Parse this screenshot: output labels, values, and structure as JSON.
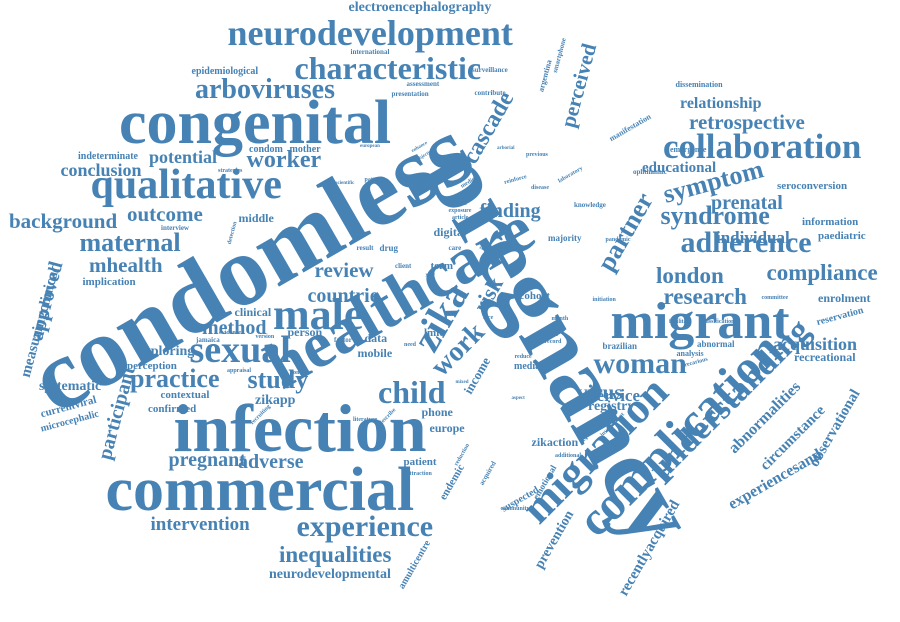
{
  "cloud": {
    "color": "#4682b4",
    "words": [
      {
        "text": "condomless",
        "weight": 1.0,
        "angle": -30
      },
      {
        "text": "pregnancy",
        "weight": 0.98,
        "angle": 60
      },
      {
        "text": "healthcare",
        "weight": 0.72,
        "angle": -30
      },
      {
        "text": "congenital",
        "weight": 0.72,
        "angle": 0
      },
      {
        "text": "infection",
        "weight": 0.72,
        "angle": 0
      },
      {
        "text": "commercial",
        "weight": 0.72,
        "angle": 0
      },
      {
        "text": "migrant",
        "weight": 0.55,
        "angle": 0
      },
      {
        "text": "complication",
        "weight": 0.5,
        "angle": -45
      },
      {
        "text": "migration",
        "weight": 0.45,
        "angle": -45
      },
      {
        "text": "qualitative",
        "weight": 0.45,
        "angle": 0
      },
      {
        "text": "neurodevelopment",
        "weight": 0.4,
        "angle": 0
      },
      {
        "text": "collaboration",
        "weight": 0.4,
        "angle": 0
      },
      {
        "text": "understanding",
        "weight": 0.38,
        "angle": -45
      },
      {
        "text": "characteristic",
        "weight": 0.38,
        "angle": 0
      },
      {
        "text": "male",
        "weight": 0.45,
        "angle": 0
      },
      {
        "text": "sexual",
        "weight": 0.4,
        "angle": 0
      },
      {
        "text": "zika",
        "weight": 0.45,
        "angle": -60
      },
      {
        "text": "experience",
        "weight": 0.33,
        "angle": 0
      },
      {
        "text": "woman",
        "weight": 0.33,
        "angle": 0
      },
      {
        "text": "child",
        "weight": 0.33,
        "angle": 0
      },
      {
        "text": "adherence",
        "weight": 0.33,
        "angle": 0
      },
      {
        "text": "arboviruses",
        "weight": 0.3,
        "angle": 0
      },
      {
        "text": "practice",
        "weight": 0.28,
        "angle": 0
      },
      {
        "text": "study",
        "weight": 0.28,
        "angle": 0
      },
      {
        "text": "symptom",
        "weight": 0.28,
        "angle": -15
      },
      {
        "text": "syndrome",
        "weight": 0.28,
        "angle": 0
      },
      {
        "text": "maternal",
        "weight": 0.28,
        "angle": 0
      },
      {
        "text": "partner",
        "weight": 0.28,
        "angle": -60
      },
      {
        "text": "work",
        "weight": 0.28,
        "angle": -45
      },
      {
        "text": "inequalities",
        "weight": 0.25,
        "angle": 0
      },
      {
        "text": "compliance",
        "weight": 0.25,
        "angle": 0
      },
      {
        "text": "research",
        "weight": 0.25,
        "angle": 0
      },
      {
        "text": "london",
        "weight": 0.25,
        "angle": 0
      },
      {
        "text": "worker",
        "weight": 0.24,
        "angle": 0
      },
      {
        "text": "cascade",
        "weight": 0.24,
        "angle": -60
      },
      {
        "text": "retrospective",
        "weight": 0.22,
        "angle": 0
      },
      {
        "text": "mhealth",
        "weight": 0.22,
        "angle": 0
      },
      {
        "text": "outcome",
        "weight": 0.22,
        "angle": 0
      },
      {
        "text": "background",
        "weight": 0.22,
        "angle": 0
      },
      {
        "text": "virus",
        "weight": 0.22,
        "angle": 0
      },
      {
        "text": "review",
        "weight": 0.22,
        "angle": 0
      },
      {
        "text": "perceived",
        "weight": 0.2,
        "angle": -75
      },
      {
        "text": "finding",
        "weight": 0.2,
        "angle": 0
      },
      {
        "text": "prenatal",
        "weight": 0.2,
        "angle": 0
      },
      {
        "text": "method",
        "weight": 0.2,
        "angle": 0
      },
      {
        "text": "adverse",
        "weight": 0.2,
        "angle": 0
      },
      {
        "text": "pregnant",
        "weight": 0.2,
        "angle": 0
      },
      {
        "text": "intervention",
        "weight": 0.2,
        "angle": 0
      },
      {
        "text": "potential",
        "weight": 0.18,
        "angle": 0
      },
      {
        "text": "conclusion",
        "weight": 0.18,
        "angle": 0
      },
      {
        "text": "acquisition",
        "weight": 0.18,
        "angle": 0
      },
      {
        "text": "participant",
        "weight": 0.2,
        "angle": -75
      },
      {
        "text": "approved",
        "weight": 0.2,
        "angle": -75
      },
      {
        "text": "countrie",
        "weight": 0.2,
        "angle": 0
      },
      {
        "text": "individual",
        "weight": 0.18,
        "angle": 0
      },
      {
        "text": "risk",
        "weight": 0.2,
        "angle": -60
      },
      {
        "text": "service",
        "weight": 0.18,
        "angle": 0
      },
      {
        "text": "relationship",
        "weight": 0.16,
        "angle": 0
      },
      {
        "text": "educational",
        "weight": 0.15,
        "angle": 0
      },
      {
        "text": "abnormalities",
        "weight": 0.16,
        "angle": -45
      },
      {
        "text": "circumstance",
        "weight": 0.15,
        "angle": -45
      },
      {
        "text": "observational",
        "weight": 0.15,
        "angle": -60
      },
      {
        "text": "experiencesand",
        "weight": 0.16,
        "angle": -30
      },
      {
        "text": "recentlyacquired",
        "weight": 0.15,
        "angle": -60
      },
      {
        "text": "neurodevelopmental",
        "weight": 0.14,
        "angle": 0
      },
      {
        "text": "electroencephalography",
        "weight": 0.14,
        "angle": 0
      },
      {
        "text": "measuringclinical",
        "weight": 0.15,
        "angle": -75
      },
      {
        "text": "exploring",
        "weight": 0.14,
        "angle": 0
      },
      {
        "text": "systematic",
        "weight": 0.14,
        "angle": 0
      },
      {
        "text": "zikapp",
        "weight": 0.14,
        "angle": 0
      },
      {
        "text": "registry",
        "weight": 0.14,
        "angle": 0
      },
      {
        "text": "zikaction",
        "weight": 0.12,
        "angle": 0
      },
      {
        "text": "currentviral",
        "weight": 0.11,
        "angle": -15
      },
      {
        "text": "prevention",
        "weight": 0.14,
        "angle": -60
      },
      {
        "text": "recreational",
        "weight": 0.12,
        "angle": 0
      },
      {
        "text": "enrolment",
        "weight": 0.12,
        "angle": 0
      },
      {
        "text": "seroconversion",
        "weight": 0.11,
        "angle": 0
      },
      {
        "text": "information",
        "weight": 0.11,
        "angle": 0
      },
      {
        "text": "paediatric",
        "weight": 0.11,
        "angle": 0
      },
      {
        "text": "reservation",
        "weight": 0.1,
        "angle": -15
      },
      {
        "text": "middle",
        "weight": 0.12,
        "angle": 0
      },
      {
        "text": "clinical",
        "weight": 0.12,
        "angle": 0
      },
      {
        "text": "phone",
        "weight": 0.12,
        "angle": 0
      },
      {
        "text": "europe",
        "weight": 0.12,
        "angle": 0
      },
      {
        "text": "income",
        "weight": 0.13,
        "angle": -60
      },
      {
        "text": "mobile",
        "weight": 0.12,
        "angle": 0
      },
      {
        "text": "person",
        "weight": 0.12,
        "angle": 0
      },
      {
        "text": "implication",
        "weight": 0.11,
        "angle": 0
      },
      {
        "text": "perception",
        "weight": 0.11,
        "angle": 0
      },
      {
        "text": "contextual",
        "weight": 0.11,
        "angle": 0
      },
      {
        "text": "confirmed",
        "weight": 0.11,
        "angle": 0
      },
      {
        "text": "microcephalic",
        "weight": 0.1,
        "angle": -15
      },
      {
        "text": "epidemiological",
        "weight": 0.1,
        "angle": 0
      },
      {
        "text": "indeterminate",
        "weight": 0.1,
        "angle": 0
      },
      {
        "text": "condom",
        "weight": 0.1,
        "angle": 0
      },
      {
        "text": "mother",
        "weight": 0.1,
        "angle": 0
      },
      {
        "text": "digital",
        "weight": 0.12,
        "angle": 0
      },
      {
        "text": "data",
        "weight": 0.12,
        "angle": 0
      },
      {
        "text": "term",
        "weight": 0.11,
        "angle": 0
      },
      {
        "text": "lmic",
        "weight": 0.11,
        "angle": 0
      },
      {
        "text": "cohort",
        "weight": 0.11,
        "angle": 0
      },
      {
        "text": "patient",
        "weight": 0.11,
        "angle": 0
      },
      {
        "text": "endemic",
        "weight": 0.11,
        "angle": -60
      },
      {
        "text": "amulticentre",
        "weight": 0.1,
        "angle": -60
      },
      {
        "text": "suspected",
        "weight": 0.1,
        "angle": -30
      },
      {
        "text": "emotional",
        "weight": 0.09,
        "angle": -60
      },
      {
        "text": "median",
        "weight": 0.1,
        "angle": 0
      },
      {
        "text": "majority",
        "weight": 0.09,
        "angle": 0
      },
      {
        "text": "drug",
        "weight": 0.09,
        "angle": 0
      },
      {
        "text": "brazilian",
        "weight": 0.09,
        "angle": 0
      },
      {
        "text": "abnormal",
        "weight": 0.09,
        "angle": 0
      },
      {
        "text": "analysis",
        "weight": 0.08,
        "angle": 0
      },
      {
        "text": "knowledge",
        "weight": 0.07,
        "angle": 0
      },
      {
        "text": "manifestation",
        "weight": 0.08,
        "angle": -30
      },
      {
        "text": "dissemination",
        "weight": 0.08,
        "angle": 0
      },
      {
        "text": "emergence",
        "weight": 0.08,
        "angle": 0
      },
      {
        "text": "ophthalmic",
        "weight": 0.07,
        "angle": 0
      },
      {
        "text": "argentina",
        "weight": 0.08,
        "angle": -75
      },
      {
        "text": "smartphone",
        "weight": 0.07,
        "angle": -75
      },
      {
        "text": "surveillance",
        "weight": 0.07,
        "angle": 0
      },
      {
        "text": "assessment",
        "weight": 0.07,
        "angle": 0
      },
      {
        "text": "presentation",
        "weight": 0.07,
        "angle": 0
      },
      {
        "text": "contribute",
        "weight": 0.07,
        "angle": 0
      },
      {
        "text": "international",
        "weight": 0.07,
        "angle": 0
      },
      {
        "text": "strategies",
        "weight": 0.06,
        "angle": 0
      },
      {
        "text": "interview",
        "weight": 0.07,
        "angle": 0
      },
      {
        "text": "detection",
        "weight": 0.06,
        "angle": -75
      },
      {
        "text": "facilitate",
        "weight": 0.06,
        "angle": 0
      },
      {
        "text": "classification",
        "weight": 0.06,
        "angle": 0
      },
      {
        "text": "committee",
        "weight": 0.06,
        "angle": 0
      },
      {
        "text": "pandemic",
        "weight": 0.06,
        "angle": 0
      },
      {
        "text": "initiation",
        "weight": 0.06,
        "angle": 0
      },
      {
        "text": "precarious",
        "weight": 0.06,
        "angle": -15
      },
      {
        "text": "involvement",
        "weight": 0.06,
        "angle": -45
      },
      {
        "text": "reported",
        "weight": 0.07,
        "angle": -60
      },
      {
        "text": "additional",
        "weight": 0.06,
        "angle": 0
      },
      {
        "text": "community",
        "weight": 0.06,
        "angle": 0
      },
      {
        "text": "acquired",
        "weight": 0.07,
        "angle": -60
      },
      {
        "text": "reduction",
        "weight": 0.06,
        "angle": -60
      },
      {
        "text": "attraction",
        "weight": 0.06,
        "angle": 0
      },
      {
        "text": "literature",
        "weight": 0.06,
        "angle": 0
      },
      {
        "text": "describe",
        "weight": 0.06,
        "angle": -45
      },
      {
        "text": "recruiting",
        "weight": 0.06,
        "angle": -45
      },
      {
        "text": "evidence",
        "weight": 0.06,
        "angle": 0
      },
      {
        "text": "version",
        "weight": 0.06,
        "angle": 0
      },
      {
        "text": "jamaica",
        "weight": 0.07,
        "angle": 0
      },
      {
        "text": "appraisal",
        "weight": 0.06,
        "angle": 0
      },
      {
        "text": "context",
        "weight": 0.06,
        "angle": 0
      },
      {
        "text": "factor",
        "weight": 0.07,
        "angle": 0
      },
      {
        "text": "client",
        "weight": 0.07,
        "angle": 0
      },
      {
        "text": "result",
        "weight": 0.07,
        "angle": 0
      },
      {
        "text": "care",
        "weight": 0.07,
        "angle": 0
      },
      {
        "text": "article",
        "weight": 0.06,
        "angle": 0
      },
      {
        "text": "exposure",
        "weight": 0.06,
        "angle": 0
      },
      {
        "text": "studies",
        "weight": 0.06,
        "angle": 0
      },
      {
        "text": "medical",
        "weight": 0.06,
        "angle": -30
      },
      {
        "text": "reinforce",
        "weight": 0.06,
        "angle": -15
      },
      {
        "text": "disease",
        "weight": 0.06,
        "angle": 0
      },
      {
        "text": "laboratory",
        "weight": 0.06,
        "angle": -30
      },
      {
        "text": "previous",
        "weight": 0.06,
        "angle": 0
      },
      {
        "text": "arborial",
        "weight": 0.05,
        "angle": 0
      },
      {
        "text": "objective",
        "weight": 0.05,
        "angle": -30
      },
      {
        "text": "enhance",
        "weight": 0.05,
        "angle": -30
      },
      {
        "text": "european",
        "weight": 0.05,
        "angle": 0
      },
      {
        "text": "scientific",
        "weight": 0.05,
        "angle": 0
      },
      {
        "text": "pattern",
        "weight": 0.06,
        "angle": 0
      },
      {
        "text": "need",
        "weight": 0.06,
        "angle": 0
      },
      {
        "text": "face",
        "weight": 0.06,
        "angle": 0
      },
      {
        "text": "month",
        "weight": 0.06,
        "angle": 0
      },
      {
        "text": "theme",
        "weight": 0.07,
        "angle": 0
      },
      {
        "text": "record",
        "weight": 0.06,
        "angle": 0
      },
      {
        "text": "reduce",
        "weight": 0.06,
        "angle": 0
      },
      {
        "text": "mixed",
        "weight": 0.05,
        "angle": 0
      },
      {
        "text": "aspect",
        "weight": 0.05,
        "angle": 0
      },
      {
        "text": "spain",
        "weight": 0.05,
        "angle": 0
      },
      {
        "text": "day",
        "weight": 0.05,
        "angle": 0
      },
      {
        "text": "year",
        "weight": 0.05,
        "angle": 0
      }
    ]
  }
}
